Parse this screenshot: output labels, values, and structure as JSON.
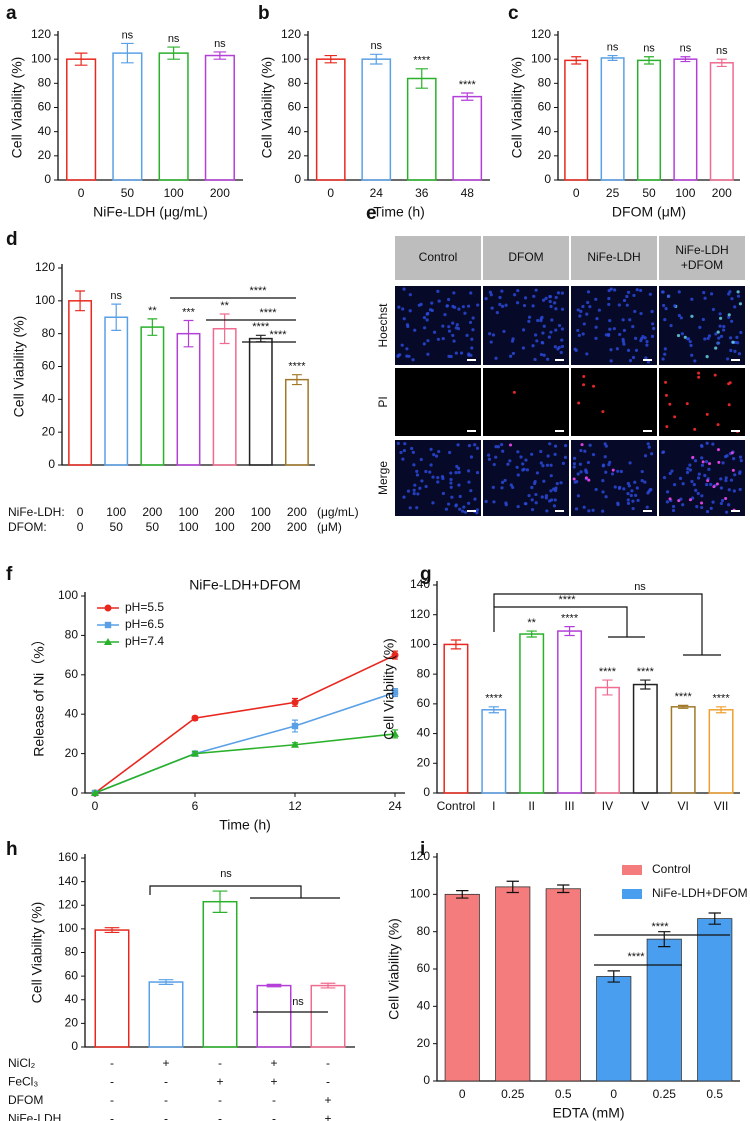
{
  "chart_data": [
    {
      "type": "bar",
      "panel": "a",
      "ylabel": "Cell Viability (%)",
      "xlabel": "NiFe-LDH (μg/mL)",
      "categories": [
        "0",
        "50",
        "100",
        "200"
      ],
      "values": [
        100,
        105,
        105,
        103
      ],
      "errors": [
        5,
        8,
        5,
        3
      ],
      "colors": [
        "#e8281f",
        "#5aa0e6",
        "#2ab12a",
        "#b43fd8"
      ],
      "significance": [
        null,
        "ns",
        "ns",
        "ns"
      ],
      "ylim": [
        0,
        120
      ],
      "yticks": [
        0,
        20,
        40,
        60,
        80,
        100,
        120
      ]
    },
    {
      "type": "bar",
      "panel": "b",
      "ylabel": "Cell Viability (%)",
      "xlabel": "Time (h)",
      "categories": [
        "0",
        "24",
        "36",
        "48"
      ],
      "values": [
        100,
        100,
        84,
        69
      ],
      "errors": [
        3,
        4,
        8,
        3
      ],
      "colors": [
        "#e8281f",
        "#5aa0e6",
        "#2ab12a",
        "#b43fd8"
      ],
      "significance": [
        null,
        "ns",
        "****",
        "****"
      ],
      "ylim": [
        0,
        120
      ],
      "yticks": [
        0,
        20,
        40,
        60,
        80,
        100,
        120
      ]
    },
    {
      "type": "bar",
      "panel": "c",
      "ylabel": "Cell Viability (%)",
      "xlabel": "DFOM (μM)",
      "categories": [
        "0",
        "25",
        "50",
        "100",
        "200"
      ],
      "values": [
        99,
        101,
        99,
        100,
        97
      ],
      "errors": [
        3,
        2,
        3,
        2,
        3
      ],
      "colors": [
        "#e8281f",
        "#5aa0e6",
        "#2ab12a",
        "#b43fd8",
        "#f06b8f"
      ],
      "significance": [
        null,
        "ns",
        "ns",
        "ns",
        "ns"
      ],
      "ylim": [
        0,
        120
      ],
      "yticks": [
        0,
        20,
        40,
        60,
        80,
        100,
        120
      ]
    },
    {
      "type": "bar",
      "panel": "d",
      "ylabel": "Cell Viability (%)",
      "values": [
        100,
        90,
        84,
        80,
        83,
        77,
        52
      ],
      "errors": [
        6,
        8,
        5,
        8,
        9,
        2,
        3
      ],
      "colors": [
        "#e8281f",
        "#5aa0e6",
        "#2ab12a",
        "#b43fd8",
        "#f06b8f",
        "#222222",
        "#a07828"
      ],
      "significance": [
        null,
        "ns",
        "**",
        "***",
        "**",
        "****",
        "****"
      ],
      "rows": [
        {
          "name": "NiFe-LDH:",
          "labels": [
            "0",
            "100",
            "200",
            "100",
            "200",
            "100",
            "200"
          ],
          "unit": "(μg/mL)"
        },
        {
          "name": "DFOM:",
          "labels": [
            "0",
            "50",
            "50",
            "100",
            "100",
            "200",
            "200"
          ],
          "unit": "(μM)"
        }
      ],
      "brackets": [
        {
          "label": "****"
        },
        {
          "label": "****"
        },
        {
          "label": "****"
        }
      ],
      "ylim": [
        0,
        120
      ],
      "yticks": [
        0,
        20,
        40,
        60,
        80,
        100,
        120
      ]
    },
    {
      "type": "image_grid",
      "panel": "e",
      "columns": [
        "Control",
        "DFOM",
        "NiFe-LDH",
        "NiFe-LDH\n+DFOM"
      ],
      "rows": [
        {
          "name": "Hoechst",
          "color": "#2a3fd0"
        },
        {
          "name": "PI",
          "color": "#e02020"
        },
        {
          "name": "Merge",
          "color": "#d020d0"
        }
      ]
    },
    {
      "type": "line",
      "panel": "f",
      "title": "NiFe-LDH+DFOM",
      "ylabel": "Release of Ni（%）",
      "xlabel": "Time (h)",
      "categories": [
        "0",
        "6",
        "12",
        "24"
      ],
      "series": [
        {
          "name": "pH=5.5",
          "color": "#e8281f",
          "marker": "circle",
          "values": [
            0,
            38,
            46,
            70
          ],
          "errors": [
            0,
            1,
            2,
            2
          ]
        },
        {
          "name": "pH=6.5",
          "color": "#5aa0e6",
          "marker": "square",
          "values": [
            0,
            20,
            34,
            51
          ],
          "errors": [
            0,
            1,
            3,
            2
          ]
        },
        {
          "name": "pH=7.4",
          "color": "#2ab12a",
          "marker": "triangle",
          "values": [
            0,
            20,
            24.5,
            30
          ],
          "errors": [
            0,
            1,
            1,
            2
          ]
        }
      ],
      "legend": "upper left",
      "ylim": [
        0,
        100
      ],
      "yticks": [
        0,
        20,
        40,
        60,
        80,
        100
      ]
    },
    {
      "type": "bar",
      "panel": "g",
      "ylabel": "Cell Viability (%)",
      "categories": [
        "Control",
        "I",
        "II",
        "III",
        "IV",
        "V",
        "VI",
        "VII"
      ],
      "values": [
        100,
        56,
        107,
        109,
        71,
        73,
        58,
        56
      ],
      "errors": [
        3,
        2,
        2,
        3,
        5,
        3,
        1,
        2
      ],
      "colors": [
        "#e8281f",
        "#5aa0e6",
        "#2ab12a",
        "#b43fd8",
        "#f06b8f",
        "#222222",
        "#a07828",
        "#f0a030"
      ],
      "significance": [
        null,
        "****",
        "**",
        "****",
        "****",
        "****",
        "****",
        "****"
      ],
      "brackets": [
        {
          "label": "****"
        },
        {
          "label": "ns"
        }
      ],
      "ylim": [
        0,
        140
      ],
      "yticks": [
        0,
        20,
        40,
        60,
        80,
        100,
        120,
        140
      ]
    },
    {
      "type": "bar",
      "panel": "h",
      "ylabel": "Cell Viability (%)",
      "values": [
        99,
        55,
        123,
        52,
        52
      ],
      "errors": [
        2,
        2,
        9,
        1,
        2
      ],
      "colors": [
        "#e8281f",
        "#5aa0e6",
        "#2ab12a",
        "#b43fd8",
        "#f06b8f"
      ],
      "significance": [
        null,
        null,
        null,
        null,
        null
      ],
      "rows": [
        {
          "name": "NiCl₂",
          "labels": [
            "-",
            "+",
            "-",
            "+",
            "-"
          ],
          "label_colors": [
            "#111",
            "#e8281f",
            "#111",
            "#e8281f",
            "#111"
          ]
        },
        {
          "name": "FeCl₃",
          "labels": [
            "-",
            "-",
            "+",
            "+",
            "-"
          ],
          "label_colors": [
            "#111",
            "#111",
            "#e8281f",
            "#e8281f",
            "#111"
          ]
        },
        {
          "name": "DFOM",
          "labels": [
            "-",
            "-",
            "-",
            "-",
            "+"
          ],
          "label_colors": [
            "#111",
            "#111",
            "#111",
            "#111",
            "#e8281f"
          ]
        },
        {
          "name": "NiFe-LDH",
          "labels": [
            "-",
            "-",
            "-",
            "-",
            "+"
          ],
          "label_colors": [
            "#111",
            "#111",
            "#111",
            "#111",
            "#e8281f"
          ]
        }
      ],
      "brackets": [
        {
          "label": "ns"
        },
        {
          "label": "ns"
        }
      ],
      "ylim": [
        0,
        160
      ],
      "yticks": [
        0,
        20,
        40,
        60,
        80,
        100,
        120,
        140,
        160
      ]
    },
    {
      "type": "grouped_bar",
      "panel": "i",
      "ylabel": "Cell Viability (%)",
      "xlabel": "EDTA (mM)",
      "categories": [
        "0",
        "0.25",
        "0.5",
        "0",
        "0.25",
        "0.5"
      ],
      "series": [
        {
          "name": "Control",
          "color": "#f47c7c",
          "values": [
            100,
            104,
            103,
            null,
            null,
            null
          ],
          "errors": [
            2,
            3,
            2,
            null,
            null,
            null
          ]
        },
        {
          "name": "NiFe-LDH+DFOM",
          "color": "#4a9ef0",
          "values": [
            null,
            null,
            null,
            56,
            76,
            87
          ],
          "errors": [
            null,
            null,
            null,
            3,
            4,
            3
          ]
        }
      ],
      "legend": "upper right",
      "brackets": [
        {
          "label": "****"
        },
        {
          "label": "****"
        }
      ],
      "ylim": [
        0,
        120
      ],
      "yticks": [
        0,
        20,
        40,
        60,
        80,
        100,
        120
      ]
    }
  ]
}
